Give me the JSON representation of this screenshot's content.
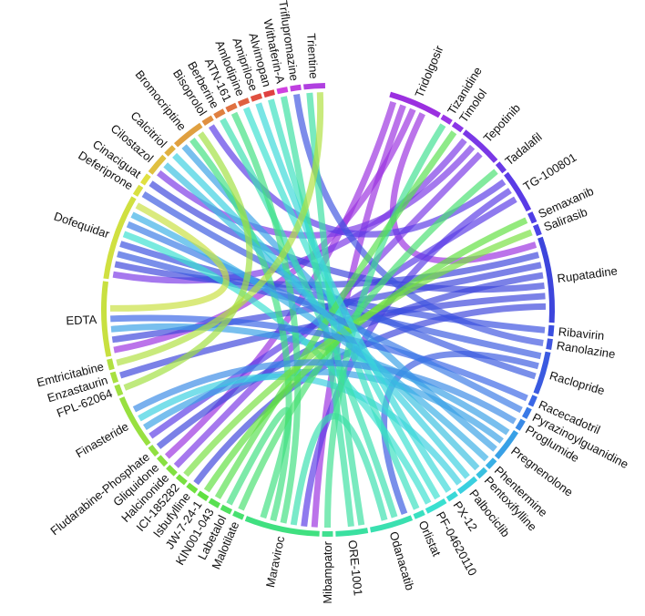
{
  "nodes": [
    {
      "name": "Tridolgosir",
      "color": "#9b30e0",
      "weight": 5
    },
    {
      "name": "Tizanidine",
      "color": "#9a35e6",
      "weight": 1
    },
    {
      "name": "Timolol",
      "color": "#8a36e6",
      "weight": 1
    },
    {
      "name": "Tepotinib",
      "color": "#7a38e6",
      "weight": 4
    },
    {
      "name": "Tadalafil",
      "color": "#6a3ae6",
      "weight": 1
    },
    {
      "name": "TG-100801",
      "color": "#5a3be6",
      "weight": 4
    },
    {
      "name": "Semaxanib",
      "color": "#4f3ee6",
      "weight": 1
    },
    {
      "name": "Salirasib",
      "color": "#4a44e6",
      "weight": 1
    },
    {
      "name": "Rupatadine",
      "color": "#3d45dc",
      "weight": 8
    },
    {
      "name": "Ribavirin",
      "color": "#3a4fe0",
      "weight": 1
    },
    {
      "name": "Ranolazine",
      "color": "#4055e0",
      "weight": 1
    },
    {
      "name": "Raclopride",
      "color": "#3a5ae0",
      "weight": 4
    },
    {
      "name": "Racecadotril",
      "color": "#3a66e6",
      "weight": 1
    },
    {
      "name": "Pyrazinoylguanidine",
      "color": "#3a7ae6",
      "weight": 1
    },
    {
      "name": "Proglumide",
      "color": "#3a8ae6",
      "weight": 1
    },
    {
      "name": "Pregnenolone",
      "color": "#38a0e6",
      "weight": 3
    },
    {
      "name": "Phentermine",
      "color": "#3ab0e6",
      "weight": 1
    },
    {
      "name": "Pentoxifylline",
      "color": "#3ac0e0",
      "weight": 1
    },
    {
      "name": "Palbociclib",
      "color": "#3ad0e0",
      "weight": 2
    },
    {
      "name": "PX-12",
      "color": "#3ad8d8",
      "weight": 1
    },
    {
      "name": "PF-04620110",
      "color": "#3ae0d0",
      "weight": 2
    },
    {
      "name": "Orlistat",
      "color": "#3ae0c0",
      "weight": 1
    },
    {
      "name": "Odanacatib",
      "color": "#3ae0b0",
      "weight": 4
    },
    {
      "name": "ORE-1001",
      "color": "#3ae0a0",
      "weight": 3
    },
    {
      "name": "Mibampator",
      "color": "#40e090",
      "weight": 1
    },
    {
      "name": "Maraviroc",
      "color": "#40e080",
      "weight": 7
    },
    {
      "name": "Malotilate",
      "color": "#48e070",
      "weight": 1
    },
    {
      "name": "Labetalol",
      "color": "#50e060",
      "weight": 1
    },
    {
      "name": "KIN001-043",
      "color": "#58e050",
      "weight": 1
    },
    {
      "name": "JW-7-24-1",
      "color": "#60e040",
      "weight": 1
    },
    {
      "name": "Isbufylline",
      "color": "#70e040",
      "weight": 1
    },
    {
      "name": "ICI-185282",
      "color": "#78e040",
      "weight": 1
    },
    {
      "name": "Halcinonide",
      "color": "#80e040",
      "weight": 1
    },
    {
      "name": "Gliquidone",
      "color": "#88e040",
      "weight": 1
    },
    {
      "name": "Fludarabine-Phosphate",
      "color": "#90e040",
      "weight": 1
    },
    {
      "name": "Finasteride",
      "color": "#98e040",
      "weight": 5
    },
    {
      "name": "FPL-62064",
      "color": "#a0e040",
      "weight": 1
    },
    {
      "name": "Enzastaurin",
      "color": "#a8e040",
      "weight": 1
    },
    {
      "name": "Emtricitabine",
      "color": "#b0e040",
      "weight": 1
    },
    {
      "name": "EDTA",
      "color": "#c8e040",
      "weight": 7
    },
    {
      "name": "Dofequidar",
      "color": "#d0e040",
      "weight": 8
    },
    {
      "name": "Deferiprone",
      "color": "#d8e040",
      "weight": 1
    },
    {
      "name": "Cinaciguat",
      "color": "#e0e040",
      "weight": 1
    },
    {
      "name": "Cilostazol",
      "color": "#e0c040",
      "weight": 2
    },
    {
      "name": "Calcitriol",
      "color": "#e0b040",
      "weight": 1
    },
    {
      "name": "Bromocriptine",
      "color": "#e0a040",
      "weight": 3
    },
    {
      "name": "Bisoprolol",
      "color": "#e09040",
      "weight": 1
    },
    {
      "name": "Berberine",
      "color": "#e08040",
      "weight": 1
    },
    {
      "name": "ATN-161",
      "color": "#e07040",
      "weight": 1
    },
    {
      "name": "Amlodipine",
      "color": "#e06040",
      "weight": 1
    },
    {
      "name": "Amiprilose",
      "color": "#e05040",
      "weight": 1
    },
    {
      "name": "Alvimopan",
      "color": "#e04040",
      "weight": 1
    },
    {
      "name": "Withaferin-A",
      "color": "#d040e0",
      "weight": 1
    },
    {
      "name": "Triflupromazine",
      "color": "#c040e0",
      "weight": 1
    },
    {
      "name": "Trientine",
      "color": "#b040e0",
      "weight": 2
    }
  ],
  "links": [
    [
      "Tridolgosir",
      "Gliquidone"
    ],
    [
      "Tridolgosir",
      "Maraviroc"
    ],
    [
      "Tridolgosir",
      "EDTA"
    ],
    [
      "Tridolgosir",
      "Rupatadine"
    ],
    [
      "Tepotinib",
      "Dofequidar"
    ],
    [
      "Tepotinib",
      "Cilostazol"
    ],
    [
      "Tepotinib",
      "Halcinonide"
    ],
    [
      "TG-100801",
      "Bisoprolol"
    ],
    [
      "TG-100801",
      "Maraviroc"
    ],
    [
      "TG-100801",
      "Finasteride"
    ],
    [
      "Rupatadine",
      "Dofequidar"
    ],
    [
      "Rupatadine",
      "EDTA"
    ],
    [
      "Rupatadine",
      "Fludarabine-Phosphate"
    ],
    [
      "Rupatadine",
      "Cinaciguat"
    ],
    [
      "Rupatadine",
      "Enzastaurin"
    ],
    [
      "Rupatadine",
      "Isbufylline"
    ],
    [
      "Raclopride",
      "Dofequidar"
    ],
    [
      "Raclopride",
      "Odanacatib"
    ],
    [
      "Raclopride",
      "Deferiprone"
    ],
    [
      "Ranolazine",
      "Triflupromazine"
    ],
    [
      "Ribavirin",
      "Dofequidar"
    ],
    [
      "Pregnenolone",
      "EDTA"
    ],
    [
      "Pregnenolone",
      "Finasteride"
    ],
    [
      "Pregnenolone",
      "Bromocriptine"
    ],
    [
      "Palbociclib",
      "Calcitriol"
    ],
    [
      "Palbociclib",
      "Finasteride"
    ],
    [
      "PF-04620110",
      "Amlodipine"
    ],
    [
      "PF-04620110",
      "Dofequidar"
    ],
    [
      "Orlistat",
      "Alvimopan"
    ],
    [
      "Odanacatib",
      "Berberine"
    ],
    [
      "Odanacatib",
      "Maraviroc"
    ],
    [
      "ORE-1001",
      "Trientine"
    ],
    [
      "ORE-1001",
      "Withaferin-A"
    ],
    [
      "Maraviroc",
      "ATN-161"
    ],
    [
      "Maraviroc",
      "Bromocriptine"
    ],
    [
      "Maraviroc",
      "Labetalol"
    ],
    [
      "Mibampator",
      "Tizanidine"
    ],
    [
      "Malotilate",
      "Tadalafil"
    ],
    [
      "KIN001-043",
      "Timolol"
    ],
    [
      "JW-7-24-1",
      "Semaxanib"
    ],
    [
      "ICI-185282",
      "Salirasib"
    ],
    [
      "Racecadotril",
      "EDTA"
    ],
    [
      "Pyrazinoylguanidine",
      "Dofequidar"
    ],
    [
      "Proglumide",
      "Finasteride"
    ],
    [
      "Phentermine",
      "Dofequidar"
    ],
    [
      "Pentoxifylline",
      "Cilostazol"
    ],
    [
      "PX-12",
      "Amiprilose"
    ],
    [
      "FPL-62064",
      "Bromocriptine"
    ],
    [
      "Emtricitabine",
      "Trientine"
    ],
    [
      "EDTA",
      "Dofequidar"
    ]
  ]
}
